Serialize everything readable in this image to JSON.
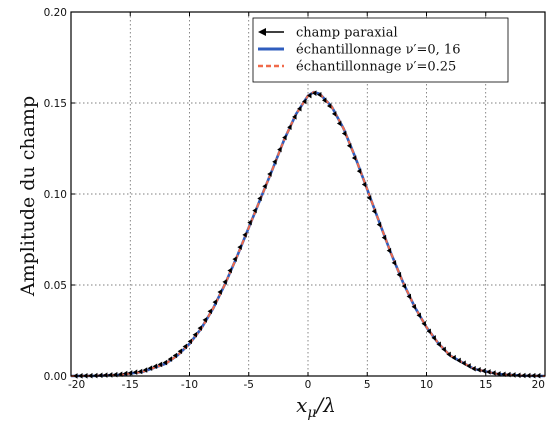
{
  "chart_data": {
    "type": "line",
    "xlabel": "x_μ/λ",
    "ylabel": "Amplitude du champ",
    "xlim": [
      -20,
      20
    ],
    "ylim": [
      0.0,
      0.2
    ],
    "x_ticks": [
      -20,
      -15,
      -10,
      -5,
      0,
      5,
      10,
      15,
      20
    ],
    "x_tick_labels": [
      "-20",
      "-15",
      "-10",
      "-5",
      "0",
      "5",
      "10",
      "15",
      "20"
    ],
    "y_ticks": [
      0.0,
      0.05,
      0.1,
      0.15,
      0.2
    ],
    "y_tick_labels": [
      "0.00",
      "0.05",
      "0.10",
      "0.15",
      "0.20"
    ],
    "grid": true,
    "legend_position": "top-right",
    "series": [
      {
        "name": "champ paraxial",
        "style": "arrow-markers",
        "color": "#000000",
        "x": [
          -20,
          -18,
          -16,
          -14,
          -12,
          -11,
          -10,
          -9,
          -8,
          -7,
          -6,
          -5,
          -4,
          -3,
          -2,
          -1,
          0,
          0.5,
          1,
          2,
          3,
          4,
          5,
          6,
          7,
          8,
          9,
          10,
          11,
          12,
          14,
          16,
          18,
          20
        ],
        "y": [
          0.0,
          0.0002,
          0.0008,
          0.0026,
          0.0075,
          0.0122,
          0.0185,
          0.0272,
          0.0385,
          0.0517,
          0.0666,
          0.0827,
          0.0985,
          0.1145,
          0.1305,
          0.144,
          0.1535,
          0.1555,
          0.1545,
          0.147,
          0.1345,
          0.1185,
          0.101,
          0.0835,
          0.0665,
          0.051,
          0.0375,
          0.0265,
          0.0178,
          0.0112,
          0.004,
          0.0012,
          0.0003,
          0.0001
        ]
      },
      {
        "name": "échantillonnage ν′=0, 16",
        "style": "solid",
        "color": "#2f5dbe",
        "x": [
          -20,
          -18,
          -16,
          -14,
          -12,
          -11,
          -10,
          -9,
          -8,
          -7,
          -6,
          -5,
          -4,
          -3,
          -2,
          -1,
          0,
          0.5,
          1,
          2,
          3,
          4,
          5,
          6,
          7,
          8,
          9,
          10,
          11,
          12,
          14,
          16,
          18,
          20
        ],
        "y": [
          0.0,
          0.0001,
          0.0006,
          0.0022,
          0.0068,
          0.0114,
          0.0177,
          0.0262,
          0.0372,
          0.0505,
          0.0655,
          0.0815,
          0.0975,
          0.1135,
          0.13,
          0.144,
          0.154,
          0.156,
          0.155,
          0.148,
          0.136,
          0.12,
          0.1025,
          0.0848,
          0.0675,
          0.0517,
          0.038,
          0.0268,
          0.0179,
          0.0112,
          0.0039,
          0.0011,
          0.0002,
          0.0
        ]
      },
      {
        "name": "échantillonnage ν′=0.25",
        "style": "dashed",
        "color": "#f06a4a",
        "x": [
          -20,
          -18,
          -16,
          -14,
          -12,
          -11,
          -10,
          -9,
          -8,
          -7,
          -6,
          -5,
          -4,
          -3,
          -2,
          -1,
          0,
          0.5,
          1,
          2,
          3,
          4,
          5,
          6,
          7,
          8,
          9,
          10,
          11,
          12,
          14,
          16,
          18,
          20
        ],
        "y": [
          0.0,
          0.0001,
          0.0006,
          0.0022,
          0.0068,
          0.0114,
          0.0177,
          0.0262,
          0.0372,
          0.0505,
          0.0655,
          0.0815,
          0.0975,
          0.1135,
          0.13,
          0.144,
          0.154,
          0.156,
          0.155,
          0.148,
          0.136,
          0.12,
          0.1025,
          0.0848,
          0.0675,
          0.0517,
          0.038,
          0.0268,
          0.0179,
          0.0112,
          0.0039,
          0.0011,
          0.0002,
          0.0
        ]
      }
    ]
  }
}
